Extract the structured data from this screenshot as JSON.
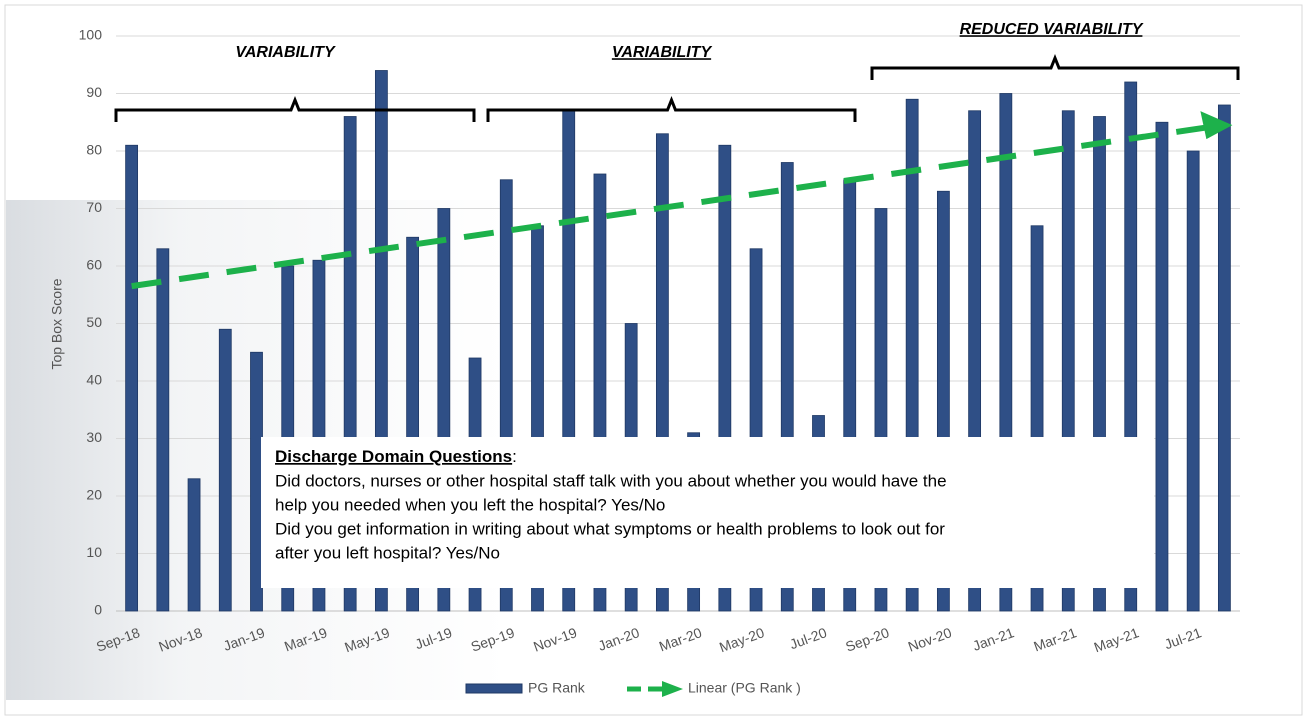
{
  "chart_data": {
    "type": "bar",
    "y_axis_label": "Top Box Score",
    "categories": [
      "Sep-18",
      null,
      "Nov-18",
      null,
      "Jan-19",
      null,
      "Mar-19",
      null,
      "May-19",
      null,
      "Jul-19",
      null,
      "Sep-19",
      null,
      "Nov-19",
      null,
      "Jan-20",
      null,
      "Mar-20",
      null,
      "May-20",
      null,
      "Jul-20",
      null,
      "Sep-20",
      null,
      "Nov-20",
      null,
      "Jan-21",
      null,
      "Mar-21",
      null,
      "May-21",
      null,
      "Jul-21",
      null
    ],
    "series": [
      {
        "name": "PG Rank",
        "color": "#2f4f86",
        "values": [
          81,
          63,
          23,
          49,
          45,
          60,
          61,
          86,
          94,
          65,
          70,
          44,
          75,
          67,
          87,
          76,
          50,
          83,
          31,
          81,
          63,
          78,
          34,
          75,
          70,
          89,
          73,
          87,
          90,
          67,
          87,
          86,
          92,
          85,
          80,
          88
        ]
      }
    ],
    "trendline": {
      "name": "Linear (PG Rank )",
      "color": "#1db14b",
      "start": 56.5,
      "end": 84.5
    },
    "ylim": [
      0,
      100
    ],
    "yticks": [
      0,
      10,
      20,
      30,
      40,
      50,
      60,
      70,
      80,
      90,
      100
    ],
    "grid": true,
    "annotations": [
      "VARIABILITY",
      "VARIABILITY",
      "REDUCED VARIABILITY"
    ],
    "note": {
      "heading": "Discharge Domain Questions",
      "heading_suffix": ":",
      "lines": [
        "Did doctors, nurses or other hospital staff talk with you about whether you would have the",
        "help you needed when you left the hospital? Yes/No",
        "Did you get information in writing about what symptoms or health problems to look out for",
        "after you left hospital? Yes/No"
      ]
    }
  }
}
